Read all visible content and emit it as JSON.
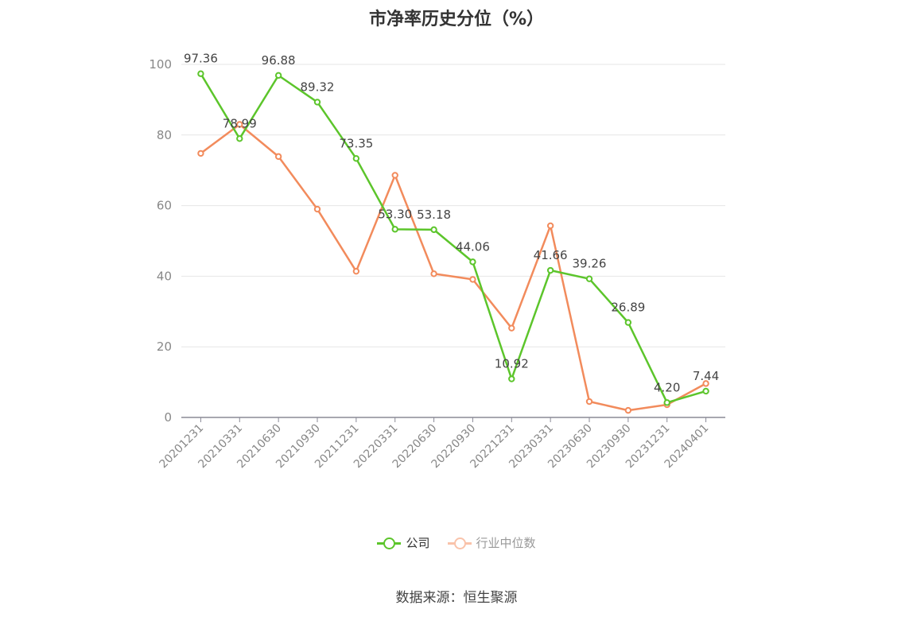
{
  "chart_data": {
    "type": "line",
    "title": "市净率历史分位（%）",
    "xlabel": "",
    "ylabel": "",
    "ylim": [
      0,
      100
    ],
    "yticks": [
      0,
      20,
      40,
      60,
      80,
      100
    ],
    "grid": true,
    "legend_position": "bottom",
    "categories": [
      "20201231",
      "20210331",
      "20210630",
      "20210930",
      "20211231",
      "20220331",
      "20220630",
      "20220930",
      "20221231",
      "20230331",
      "20230630",
      "20230930",
      "20231231",
      "20240401"
    ],
    "series": [
      {
        "name": "公司",
        "color": "#5cc52b",
        "values": [
          97.36,
          78.99,
          96.88,
          89.32,
          73.35,
          53.3,
          53.18,
          44.06,
          10.92,
          41.66,
          39.26,
          26.89,
          4.2,
          7.44
        ],
        "labels": [
          "97.36",
          "78.99",
          "96.88",
          "89.32",
          "73.35",
          "53.30",
          "53.18",
          "44.06",
          "10.92",
          "41.66",
          "39.26",
          "26.89",
          "4.20",
          "7.44"
        ]
      },
      {
        "name": "行业中位数",
        "color": "#f28b5c",
        "values": [
          74.8,
          83.0,
          73.9,
          59.0,
          41.4,
          68.6,
          40.7,
          39.1,
          25.3,
          54.3,
          4.5,
          2.0,
          3.6,
          9.6
        ]
      }
    ]
  },
  "source_text": "数据来源：恒生聚源"
}
